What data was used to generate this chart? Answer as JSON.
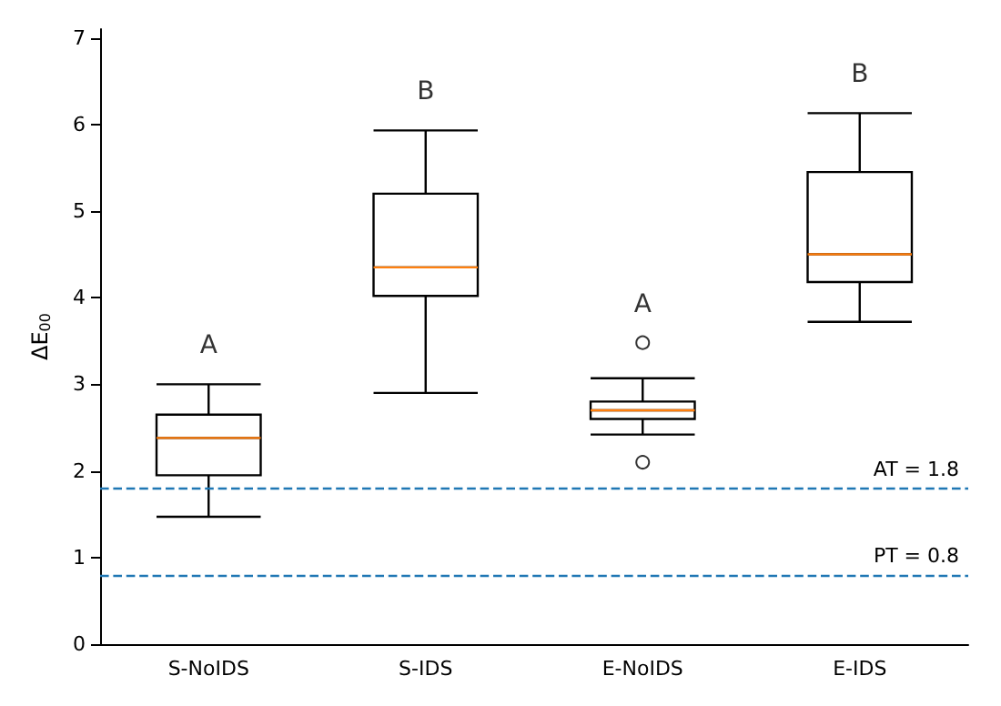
{
  "chart_data": {
    "type": "box",
    "ylabel": "ΔE$_{00}$",
    "categories": [
      "S-NoIDS",
      "S-IDS",
      "E-NoIDS",
      "E-IDS"
    ],
    "boxes": [
      {
        "low": 1.47,
        "q1": 1.95,
        "median": 2.38,
        "q3": 2.65,
        "high": 3.0
      },
      {
        "low": 2.9,
        "q1": 4.02,
        "median": 4.35,
        "q3": 5.2,
        "high": 5.93
      },
      {
        "low": 2.42,
        "q1": 2.6,
        "median": 2.7,
        "q3": 2.8,
        "high": 3.07,
        "outliers": [
          3.48,
          2.1
        ]
      },
      {
        "low": 3.72,
        "q1": 4.18,
        "median": 4.5,
        "q3": 5.45,
        "high": 6.13
      }
    ],
    "color": "#000000",
    "ylim": [
      0,
      7.1
    ],
    "yticks": [
      0,
      1,
      2,
      3,
      4,
      5,
      6,
      7
    ],
    "grid": false,
    "ref_lines": [
      {
        "axis": "y",
        "value": 1.8,
        "label": "AT = 1.8",
        "color": "#1f77b4",
        "line_style": "dashed"
      },
      {
        "axis": "y",
        "value": 0.8,
        "label": "PT = 0.8",
        "color": "#1f77b4",
        "line_style": "dashed"
      }
    ],
    "annotations": [
      "A",
      "B",
      "A",
      "B"
    ]
  }
}
